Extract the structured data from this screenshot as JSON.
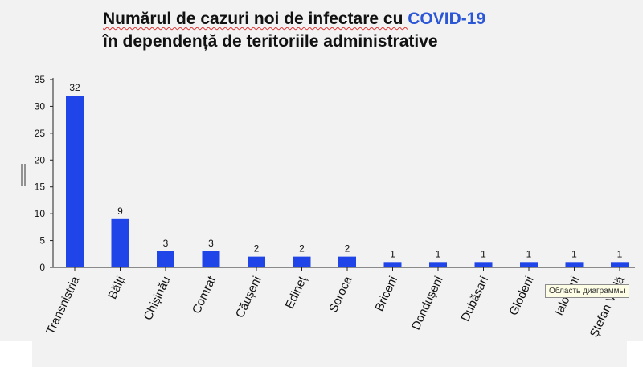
{
  "title_line1_a": "Numărul de cazuri noi de infectare cu ",
  "title_line1_b": "COVID-19",
  "title_line2": "în dependență de teritoriile administrative",
  "tooltip": "Область диаграммы",
  "chart_data": {
    "type": "bar",
    "categories": [
      "Transnistria",
      "Bălți",
      "Chișinău",
      "Comrat",
      "Căușeni",
      "Edineț",
      "Soroca",
      "Briceni",
      "Dondușeni",
      "Dubăsari",
      "Glodeni",
      "Ialoveni",
      "Ștefan Vodă"
    ],
    "values": [
      32,
      9,
      3,
      3,
      2,
      2,
      2,
      1,
      1,
      1,
      1,
      1,
      1
    ],
    "ylim": [
      0,
      35
    ],
    "yticks": [
      0,
      5,
      10,
      15,
      20,
      25,
      30,
      35
    ],
    "bar_color": "#1f45e8",
    "grid": false
  }
}
